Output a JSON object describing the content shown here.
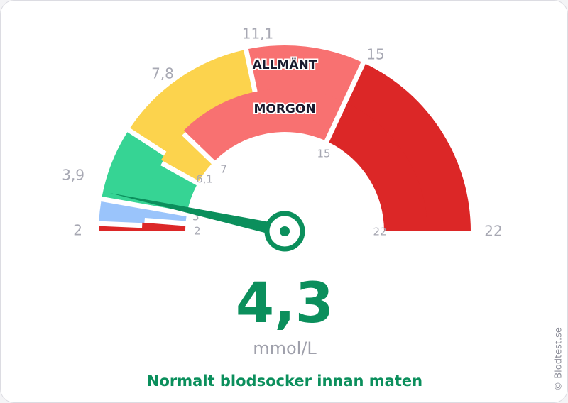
{
  "chart_data": {
    "type": "gauge",
    "unit": "mmol/L",
    "value": 4.3,
    "display_value": "4,3",
    "status_text": "Normalt blodsocker innan maten",
    "range": [
      2,
      22
    ],
    "bands": [
      {
        "name": "ALLMÄNT",
        "segments": [
          {
            "from": 2,
            "to": 3.9,
            "color": "#dc2727"
          },
          {
            "from": 3.9,
            "to": 7.8,
            "color": "#9ac4fb"
          },
          {
            "from": 7.8,
            "to": 11.1,
            "color": "#36d494"
          },
          {
            "from": 11.1,
            "to": 15,
            "color": "#fcd34d"
          },
          {
            "from": 15,
            "to": 22,
            "color": "#f87171"
          }
        ],
        "tick_labels": [
          "2",
          "3,9",
          "7,8",
          "11,1",
          "15",
          "22"
        ]
      },
      {
        "name": "MORGON",
        "segments": [
          {
            "from": 2,
            "to": 3,
            "color": "#dc2727"
          },
          {
            "from": 3,
            "to": 6.1,
            "color": "#9ac4fb"
          },
          {
            "from": 6.1,
            "to": 7,
            "color": "#36d494"
          },
          {
            "from": 7,
            "to": 15,
            "color": "#fcd34d"
          },
          {
            "from": 15,
            "to": 22,
            "color": "#f87171"
          }
        ],
        "tick_labels": [
          "2",
          "3",
          "6,1",
          "7",
          "15",
          "22"
        ]
      }
    ]
  },
  "copyright": "© Blodtest.se",
  "colors": {
    "accent": "#0b8f5c",
    "tick_label": "#a7a8b3"
  }
}
